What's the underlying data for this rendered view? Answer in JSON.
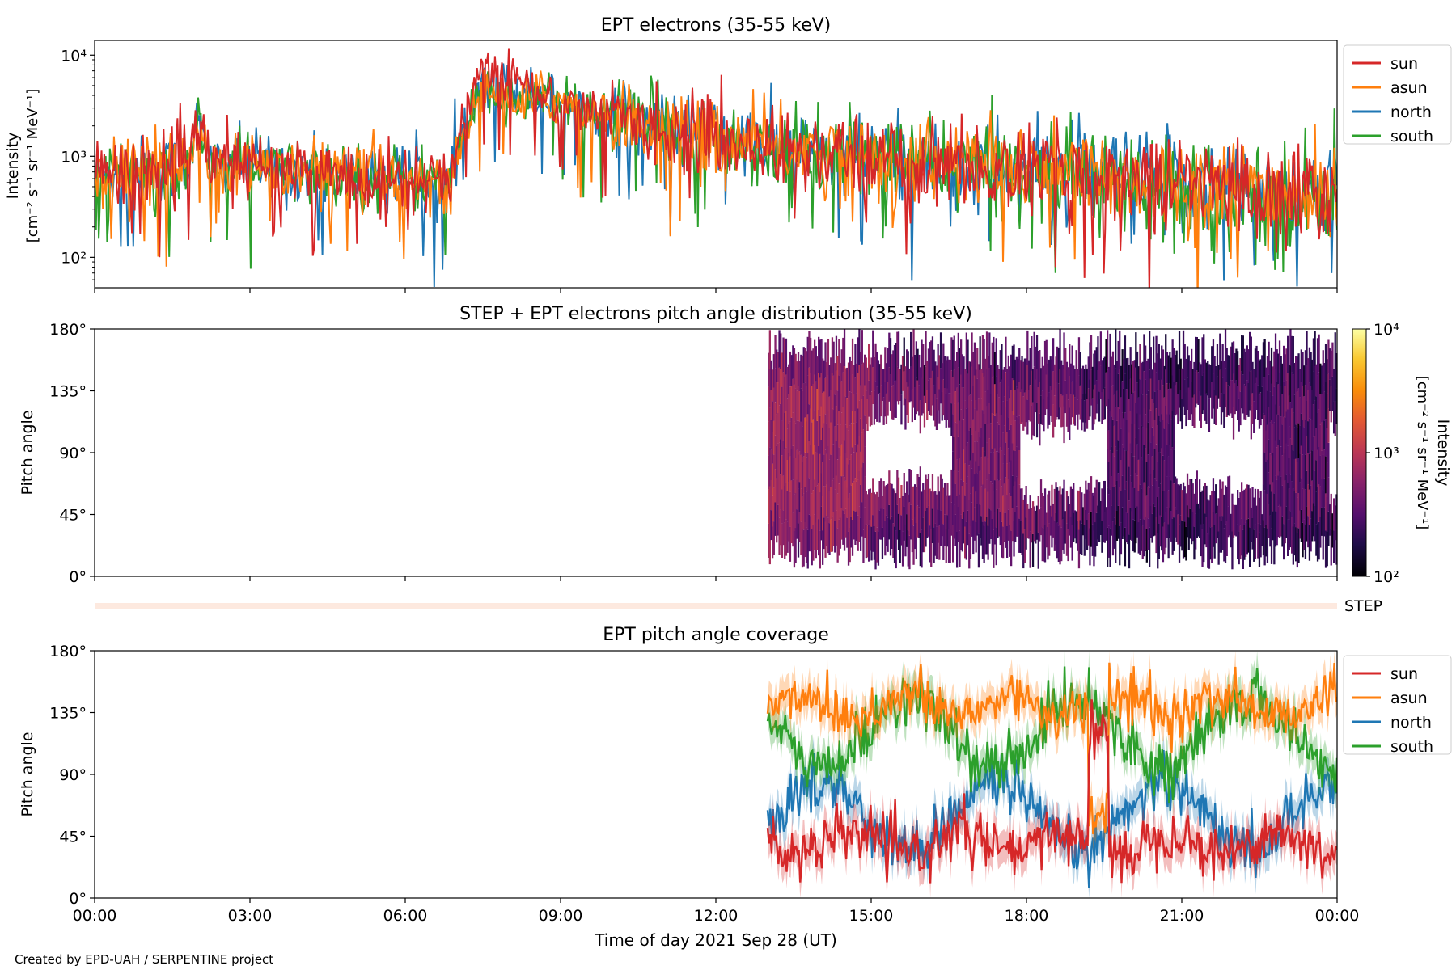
{
  "credit": "Created by EPD-UAH / SERPENTINE project",
  "colors": {
    "sun": "#d62728",
    "asun": "#ff7f0e",
    "north": "#1f77b4",
    "south": "#2ca02c"
  },
  "chart_data": [
    {
      "type": "line",
      "title": "EPT electrons (35-55 keV)",
      "ylabel": [
        "Intensity",
        "[cm⁻² s⁻¹ sr⁻¹ MeV⁻¹]"
      ],
      "yscale": "log",
      "ylim": [
        50,
        14000
      ],
      "yticks": [
        {
          "v": 100,
          "label": "10²"
        },
        {
          "v": 1000,
          "label": "10³"
        },
        {
          "v": 10000,
          "label": "10⁴"
        }
      ],
      "xlim_hours": [
        0,
        24
      ],
      "legend": [
        "sun",
        "asun",
        "north",
        "south"
      ],
      "legend_position": "outside-right",
      "grid": false,
      "profile": {
        "x_hours": [
          0,
          1,
          1.8,
          2,
          2.2,
          3,
          4,
          5,
          6,
          6.9,
          7,
          7.3,
          7.5,
          8,
          9,
          10,
          11,
          12,
          13,
          15,
          17,
          19,
          21,
          23,
          24
        ],
        "y": [
          700,
          750,
          800,
          2200,
          900,
          800,
          700,
          650,
          600,
          550,
          1200,
          4000,
          6000,
          5000,
          3500,
          2500,
          1900,
          1500,
          1200,
          950,
          800,
          650,
          550,
          450,
          400
        ]
      }
    },
    {
      "type": "heatmap",
      "title": "STEP + EPT electrons pitch angle distribution (35-55 keV)",
      "ylabel": "Pitch angle",
      "ylim": [
        0,
        180
      ],
      "yticks": [
        "0°",
        "45°",
        "90°",
        "135°",
        "180°"
      ],
      "data_start_hour": 13,
      "colorbar": {
        "label": [
          "Intensity",
          "[cm⁻² s⁻¹ sr⁻¹ MeV⁻¹]"
        ],
        "scale": "log",
        "range": [
          100,
          10000
        ],
        "ticks": [
          "10²",
          "10³",
          "10⁴"
        ],
        "colormap": "inferno"
      },
      "step_strip_label": "STEP"
    },
    {
      "type": "line",
      "title": "EPT pitch angle coverage",
      "ylabel": "Pitch angle",
      "xlabel": "Time of day 2021 Sep 28 (UT)",
      "ylim": [
        0,
        180
      ],
      "yticks": [
        "0°",
        "45°",
        "90°",
        "135°",
        "180°"
      ],
      "xticks": [
        "00:00",
        "03:00",
        "06:00",
        "09:00",
        "12:00",
        "15:00",
        "18:00",
        "21:00",
        "00:00"
      ],
      "data_start_hour": 13,
      "legend": [
        "sun",
        "asun",
        "north",
        "south"
      ],
      "legend_position": "outside-right",
      "series_mean_degrees": {
        "sun": 40,
        "asun": 140,
        "north": 60,
        "south": 120
      }
    }
  ]
}
